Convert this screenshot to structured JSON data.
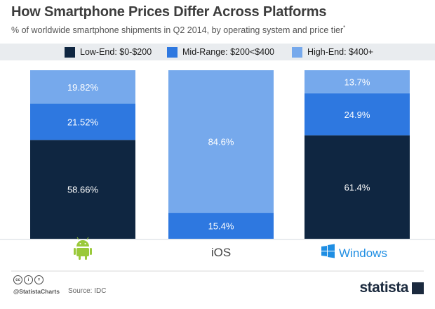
{
  "header": {
    "title": "How Smartphone Prices Differ Across Platforms",
    "subtitle": "% of worldwide smartphone shipments in Q2 2014, by operating system and price tier",
    "subtitle_mark": "*"
  },
  "footer": {
    "handle": "@StatistaCharts",
    "source": "Source: IDC",
    "brand": "statista",
    "license_icons": [
      "cc-icon",
      "attribution-icon",
      "no-derivatives-icon"
    ]
  },
  "colors": {
    "low": "#0f2641",
    "mid": "#2e78e0",
    "high": "#76a9ec",
    "android": "#9ac93a",
    "windows": "#1f8ee3",
    "legend_bg": "#e9ecef"
  },
  "chart_data": {
    "type": "bar",
    "stacked": true,
    "title": "How Smartphone Prices Differ Across Platforms",
    "subtitle": "% of worldwide smartphone shipments in Q2 2014, by operating system and price tier",
    "categories": [
      "Android",
      "iOS",
      "Windows"
    ],
    "category_display": [
      {
        "kind": "icon",
        "icon": "android-icon",
        "text": ""
      },
      {
        "kind": "text",
        "icon": "",
        "text": "iOS"
      },
      {
        "kind": "icon-text",
        "icon": "windows-icon",
        "text": "Windows"
      }
    ],
    "series": [
      {
        "name": "Low-End: $0-$200",
        "values": [
          58.66,
          0,
          61.4
        ],
        "labels": [
          "58.66%",
          "",
          "61.4%"
        ]
      },
      {
        "name": "Mid-Range: $200<$400",
        "values": [
          21.52,
          15.4,
          24.9
        ],
        "labels": [
          "21.52%",
          "15.4%",
          "24.9%"
        ]
      },
      {
        "name": "High-End: $400+",
        "values": [
          19.82,
          84.6,
          13.7
        ],
        "labels": [
          "19.82%",
          "84.6%",
          "13.7%"
        ]
      }
    ],
    "ylim": [
      0,
      100
    ],
    "legend_position": "top",
    "grid": false
  }
}
